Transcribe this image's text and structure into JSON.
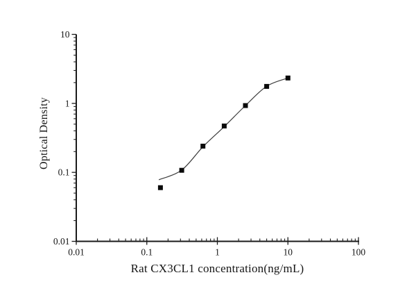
{
  "chart_data": {
    "type": "scatter",
    "title": "",
    "xlabel": "Rat CX3CL1 concentration(ng/mL)",
    "ylabel": "Optical Density",
    "x_scale": "log",
    "y_scale": "log",
    "xlim": [
      0.01,
      100
    ],
    "ylim": [
      0.01,
      10
    ],
    "x_tick_labels": [
      "0.01",
      "0.1",
      "1",
      "10",
      "100"
    ],
    "y_tick_labels": [
      "0.01",
      "0.1",
      "1",
      "10"
    ],
    "grid": false,
    "legend_position": "none",
    "marker": "filled-square",
    "colors": {
      "axis": "#1a1a1a",
      "marker": "#0a0a0a",
      "fit_line": "#3c3c3c",
      "background": "#ffffff"
    },
    "series": [
      {
        "name": "standard-curve-points",
        "points": [
          {
            "x": 0.156,
            "y": 0.06
          },
          {
            "x": 0.3125,
            "y": 0.107
          },
          {
            "x": 0.625,
            "y": 0.24
          },
          {
            "x": 1.25,
            "y": 0.47
          },
          {
            "x": 2.5,
            "y": 0.93
          },
          {
            "x": 5,
            "y": 1.76
          },
          {
            "x": 10,
            "y": 2.33
          }
        ]
      }
    ],
    "fit_curve": [
      {
        "x": 0.148,
        "y": 0.078
      },
      {
        "x": 0.3125,
        "y": 0.108
      },
      {
        "x": 0.625,
        "y": 0.235
      },
      {
        "x": 1.25,
        "y": 0.46
      },
      {
        "x": 2.5,
        "y": 0.93
      },
      {
        "x": 5,
        "y": 1.77
      },
      {
        "x": 10,
        "y": 2.33
      }
    ]
  }
}
